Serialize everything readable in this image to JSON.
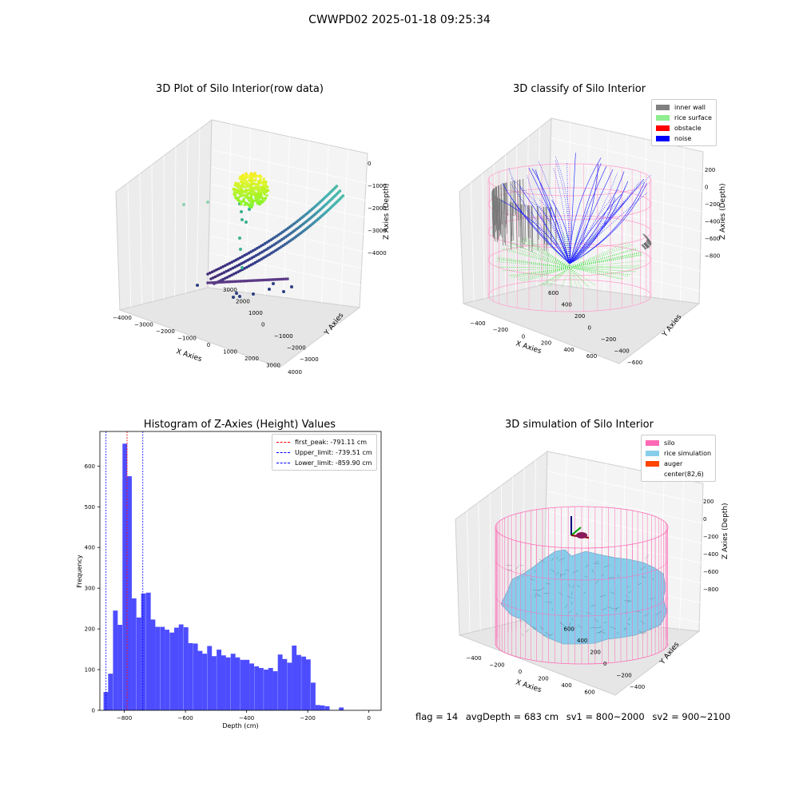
{
  "suptitle": "CWWPD02 2025-01-18 09:25:34",
  "panels": {
    "raw": {
      "title": "3D Plot of Silo Interior(row data)",
      "xlabel": "X Axies",
      "ylabel": "Y Axies",
      "zlabel": "Z Axies (Depth)",
      "xticks": [
        "−4000",
        "−3000",
        "−2000",
        "−1000",
        "0",
        "1000",
        "2000",
        "3000",
        "4000"
      ],
      "yticks": [
        "−3000",
        "−2000",
        "−1000",
        "0",
        "1000",
        "2000",
        "3000"
      ],
      "zticks": [
        "0",
        "−1000",
        "−2000",
        "−3000",
        "−4000"
      ]
    },
    "classify": {
      "title": "3D classify of Silo Interior",
      "xlabel": "X Axies",
      "ylabel": "Y Axies",
      "zlabel": "Z Axies (Depth)",
      "xticks": [
        "−400",
        "−200",
        "0",
        "200",
        "400",
        "600"
      ],
      "yticks": [
        "−600",
        "−400",
        "−200",
        "0",
        "200",
        "400",
        "600"
      ],
      "zticks": [
        "200",
        "0",
        "−200",
        "−400",
        "−600",
        "−800"
      ],
      "legend": [
        {
          "label": "inner wall",
          "color": "#808080"
        },
        {
          "label": "rice surface",
          "color": "#90ee90"
        },
        {
          "label": "obstacle",
          "color": "#ff0000"
        },
        {
          "label": "noise",
          "color": "#0000ff"
        }
      ]
    },
    "histogram": {
      "title": "Histogram of Z-Axies (Height) Values",
      "xlabel": "Depth (cm)",
      "ylabel": "Frequency",
      "legend": [
        {
          "label": "first_peak: -791.11 cm",
          "color": "#ff0000"
        },
        {
          "label": "Upper_limit: -739.51 cm",
          "color": "#0000ff"
        },
        {
          "label": "Lower_limit: -859.90 cm",
          "color": "#0000ff"
        }
      ]
    },
    "simulation": {
      "title": "3D simulation of Silo Interior",
      "xlabel": "X Axies",
      "ylabel": "Y Axies",
      "zlabel": "Z Axies (Depth)",
      "xticks": [
        "−400",
        "−200",
        "0",
        "200",
        "400",
        "600"
      ],
      "yticks": [
        "−400",
        "−200",
        "0",
        "200",
        "400",
        "600"
      ],
      "zticks": [
        "200",
        "0",
        "−200",
        "−400",
        "−600",
        "−800"
      ],
      "legend": [
        {
          "label": "silo",
          "color": "#ff69b4"
        },
        {
          "label": "rice simulation",
          "color": "#87ceeb"
        },
        {
          "label": "auger",
          "color": "#ff4500"
        },
        {
          "label": "center(82,6)",
          "color": ""
        }
      ]
    }
  },
  "footer": {
    "flag": "flag = 14",
    "avg": "avgDepth = 683 cm",
    "sv1": "sv1 = 800~2000",
    "sv2": "sv2 = 900~2100"
  },
  "colors": {
    "hist_bar": "#4d4dff",
    "peak_line": "#ff0000",
    "limit_line": "#0000ff",
    "pane": "#f2f2f2",
    "silo_wire": "#ff69b4",
    "rice_surface": "#87ceeb"
  },
  "chart_data": [
    {
      "type": "scatter",
      "title": "3D Plot of Silo Interior(row data)",
      "xlabel": "X Axies",
      "ylabel": "Y Axies",
      "zlabel": "Z Axies (Depth)",
      "xlim": [
        -4000,
        4000
      ],
      "ylim": [
        -3000,
        3000
      ],
      "zlim": [
        -4500,
        0
      ],
      "colormap": "viridis"
    },
    {
      "type": "scatter",
      "title": "3D classify of Silo Interior",
      "xlabel": "X Axies",
      "ylabel": "Y Axies",
      "zlabel": "Z Axies (Depth)",
      "xlim": [
        -500,
        700
      ],
      "ylim": [
        -600,
        700
      ],
      "zlim": [
        -900,
        250
      ],
      "series": [
        {
          "name": "inner wall"
        },
        {
          "name": "rice surface"
        },
        {
          "name": "obstacle"
        },
        {
          "name": "noise"
        }
      ]
    },
    {
      "type": "bar",
      "title": "Histogram of Z-Axies (Height) Values",
      "xlabel": "Depth (cm)",
      "ylabel": "Frequency",
      "xlim": [
        -880,
        40
      ],
      "ylim": [
        0,
        685
      ],
      "xticks": [
        -800,
        -600,
        -400,
        -200,
        0
      ],
      "yticks": [
        0,
        100,
        200,
        300,
        400,
        500,
        600
      ],
      "bin_width": 15.4,
      "bins": [
        [
          -868,
          45
        ],
        [
          -853,
          90
        ],
        [
          -837,
          245
        ],
        [
          -822,
          210
        ],
        [
          -806,
          655
        ],
        [
          -791,
          575
        ],
        [
          -776,
          275
        ],
        [
          -760,
          228
        ],
        [
          -745,
          287
        ],
        [
          -729,
          289
        ],
        [
          -714,
          223
        ],
        [
          -699,
          205
        ],
        [
          -683,
          205
        ],
        [
          -668,
          198
        ],
        [
          -652,
          191
        ],
        [
          -637,
          203
        ],
        [
          -622,
          211
        ],
        [
          -606,
          204
        ],
        [
          -591,
          165
        ],
        [
          -575,
          164
        ],
        [
          -560,
          146
        ],
        [
          -545,
          139
        ],
        [
          -529,
          158
        ],
        [
          -514,
          133
        ],
        [
          -498,
          149
        ],
        [
          -483,
          135
        ],
        [
          -468,
          130
        ],
        [
          -452,
          139
        ],
        [
          -437,
          130
        ],
        [
          -421,
          124
        ],
        [
          -406,
          124
        ],
        [
          -391,
          115
        ],
        [
          -375,
          108
        ],
        [
          -360,
          104
        ],
        [
          -344,
          100
        ],
        [
          -329,
          104
        ],
        [
          -314,
          96
        ],
        [
          -298,
          137
        ],
        [
          -283,
          126
        ],
        [
          -267,
          117
        ],
        [
          -252,
          159
        ],
        [
          -237,
          136
        ],
        [
          -221,
          132
        ],
        [
          -206,
          125
        ],
        [
          -190,
          68
        ],
        [
          -175,
          13
        ],
        [
          -160,
          12
        ],
        [
          -144,
          10
        ],
        [
          -129,
          1
        ],
        [
          -113,
          1
        ],
        [
          -98,
          7
        ]
      ],
      "lines": [
        {
          "name": "first_peak: -791.11 cm",
          "x": -791.11
        },
        {
          "name": "Upper_limit: -739.51 cm",
          "x": -739.51
        },
        {
          "name": "Lower_limit: -859.90 cm",
          "x": -859.9
        }
      ]
    },
    {
      "type": "area",
      "title": "3D simulation of Silo Interior",
      "xlabel": "X Axies",
      "ylabel": "Y Axies",
      "zlabel": "Z Axies (Depth)",
      "xlim": [
        -500,
        700
      ],
      "ylim": [
        -500,
        700
      ],
      "zlim": [
        -900,
        250
      ],
      "series": [
        {
          "name": "silo"
        },
        {
          "name": "rice simulation"
        },
        {
          "name": "auger"
        }
      ]
    }
  ]
}
